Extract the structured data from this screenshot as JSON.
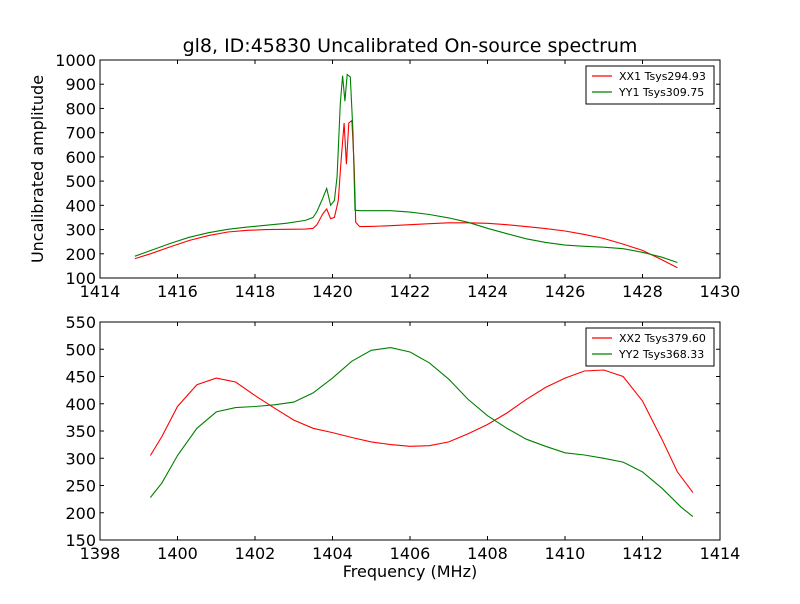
{
  "chart_data": [
    {
      "type": "line",
      "title": "gl8, ID:45830 Uncalibrated On-source spectrum",
      "xlabel": "",
      "ylabel": "Uncalibrated amplitude",
      "xlim": [
        1414,
        1430
      ],
      "ylim": [
        100,
        1000
      ],
      "xticks": [
        "1414",
        "1416",
        "1418",
        "1420",
        "1422",
        "1424",
        "1426",
        "1428",
        "1430"
      ],
      "yticks": [
        "100",
        "200",
        "300",
        "400",
        "500",
        "600",
        "700",
        "800",
        "900",
        "1000"
      ],
      "grid": false,
      "legend_position": "top-right",
      "series": [
        {
          "name": "XX1 Tsys294.93",
          "color": "#ff0000",
          "points": [
            [
              1414.9,
              180
            ],
            [
              1415.3,
              200
            ],
            [
              1415.8,
              228
            ],
            [
              1416.3,
              255
            ],
            [
              1416.8,
              275
            ],
            [
              1417.3,
              290
            ],
            [
              1417.8,
              297
            ],
            [
              1418.3,
              300
            ],
            [
              1418.8,
              301
            ],
            [
              1419.3,
              302
            ],
            [
              1419.5,
              305
            ],
            [
              1419.6,
              320
            ],
            [
              1419.75,
              365
            ],
            [
              1419.85,
              385
            ],
            [
              1419.95,
              345
            ],
            [
              1420.05,
              350
            ],
            [
              1420.15,
              420
            ],
            [
              1420.22,
              580
            ],
            [
              1420.3,
              740
            ],
            [
              1420.36,
              570
            ],
            [
              1420.42,
              740
            ],
            [
              1420.5,
              750
            ],
            [
              1420.56,
              560
            ],
            [
              1420.6,
              330
            ],
            [
              1420.7,
              312
            ],
            [
              1421.0,
              313
            ],
            [
              1421.5,
              316
            ],
            [
              1422.0,
              320
            ],
            [
              1422.5,
              324
            ],
            [
              1423.0,
              328
            ],
            [
              1423.5,
              328
            ],
            [
              1424.0,
              326
            ],
            [
              1424.5,
              320
            ],
            [
              1425.0,
              312
            ],
            [
              1425.5,
              304
            ],
            [
              1426.0,
              294
            ],
            [
              1426.5,
              280
            ],
            [
              1427.0,
              263
            ],
            [
              1427.5,
              240
            ],
            [
              1428.0,
              214
            ],
            [
              1428.5,
              175
            ],
            [
              1428.9,
              142
            ]
          ]
        },
        {
          "name": "YY1 Tsys309.75",
          "color": "#008000",
          "points": [
            [
              1414.9,
              190
            ],
            [
              1415.3,
              213
            ],
            [
              1415.8,
              242
            ],
            [
              1416.3,
              268
            ],
            [
              1416.8,
              287
            ],
            [
              1417.3,
              301
            ],
            [
              1417.8,
              310
            ],
            [
              1418.3,
              318
            ],
            [
              1418.8,
              326
            ],
            [
              1419.3,
              338
            ],
            [
              1419.5,
              350
            ],
            [
              1419.6,
              375
            ],
            [
              1419.75,
              430
            ],
            [
              1419.85,
              470
            ],
            [
              1419.95,
              400
            ],
            [
              1420.05,
              420
            ],
            [
              1420.12,
              520
            ],
            [
              1420.2,
              820
            ],
            [
              1420.26,
              935
            ],
            [
              1420.32,
              830
            ],
            [
              1420.38,
              940
            ],
            [
              1420.46,
              930
            ],
            [
              1420.53,
              700
            ],
            [
              1420.58,
              380
            ],
            [
              1420.7,
              378
            ],
            [
              1421.0,
              378
            ],
            [
              1421.5,
              378
            ],
            [
              1422.0,
              372
            ],
            [
              1422.5,
              362
            ],
            [
              1423.0,
              348
            ],
            [
              1423.5,
              330
            ],
            [
              1424.0,
              305
            ],
            [
              1424.5,
              283
            ],
            [
              1425.0,
              262
            ],
            [
              1425.5,
              247
            ],
            [
              1426.0,
              236
            ],
            [
              1426.5,
              231
            ],
            [
              1427.0,
              227
            ],
            [
              1427.5,
              221
            ],
            [
              1428.0,
              206
            ],
            [
              1428.5,
              186
            ],
            [
              1428.9,
              164
            ]
          ]
        }
      ]
    },
    {
      "type": "line",
      "title": "",
      "xlabel": "Frequency (MHz)",
      "ylabel": "",
      "xlim": [
        1398,
        1414
      ],
      "ylim": [
        150,
        550
      ],
      "xticks": [
        "1398",
        "1400",
        "1402",
        "1404",
        "1406",
        "1408",
        "1410",
        "1412",
        "1414"
      ],
      "yticks": [
        "150",
        "200",
        "250",
        "300",
        "350",
        "400",
        "450",
        "500",
        "550"
      ],
      "grid": false,
      "legend_position": "top-right",
      "series": [
        {
          "name": "XX2 Tsys379.60",
          "color": "#ff0000",
          "points": [
            [
              1399.3,
              305
            ],
            [
              1399.6,
              340
            ],
            [
              1400.0,
              395
            ],
            [
              1400.5,
              435
            ],
            [
              1401.0,
              447
            ],
            [
              1401.5,
              440
            ],
            [
              1402.0,
              415
            ],
            [
              1402.5,
              392
            ],
            [
              1403.0,
              370
            ],
            [
              1403.5,
              355
            ],
            [
              1404.0,
              347
            ],
            [
              1404.5,
              338
            ],
            [
              1405.0,
              330
            ],
            [
              1405.5,
              325
            ],
            [
              1406.0,
              322
            ],
            [
              1406.5,
              323
            ],
            [
              1407.0,
              330
            ],
            [
              1407.5,
              345
            ],
            [
              1408.0,
              362
            ],
            [
              1408.5,
              383
            ],
            [
              1409.0,
              408
            ],
            [
              1409.5,
              430
            ],
            [
              1410.0,
              447
            ],
            [
              1410.5,
              460
            ],
            [
              1411.0,
              462
            ],
            [
              1411.5,
              450
            ],
            [
              1412.0,
              405
            ],
            [
              1412.5,
              335
            ],
            [
              1412.9,
              275
            ],
            [
              1413.3,
              237
            ]
          ]
        },
        {
          "name": "YY2 Tsys368.33",
          "color": "#008000",
          "points": [
            [
              1399.3,
              228
            ],
            [
              1399.6,
              255
            ],
            [
              1400.0,
              305
            ],
            [
              1400.5,
              355
            ],
            [
              1401.0,
              385
            ],
            [
              1401.5,
              393
            ],
            [
              1402.0,
              395
            ],
            [
              1402.5,
              398
            ],
            [
              1403.0,
              403
            ],
            [
              1403.5,
              420
            ],
            [
              1404.0,
              447
            ],
            [
              1404.5,
              478
            ],
            [
              1405.0,
              498
            ],
            [
              1405.5,
              503
            ],
            [
              1406.0,
              495
            ],
            [
              1406.5,
              475
            ],
            [
              1407.0,
              445
            ],
            [
              1407.5,
              408
            ],
            [
              1408.0,
              378
            ],
            [
              1408.5,
              355
            ],
            [
              1409.0,
              335
            ],
            [
              1409.5,
              322
            ],
            [
              1410.0,
              310
            ],
            [
              1410.5,
              306
            ],
            [
              1411.0,
              300
            ],
            [
              1411.5,
              293
            ],
            [
              1412.0,
              275
            ],
            [
              1412.5,
              245
            ],
            [
              1413.0,
              210
            ],
            [
              1413.3,
              193
            ]
          ]
        }
      ]
    }
  ]
}
